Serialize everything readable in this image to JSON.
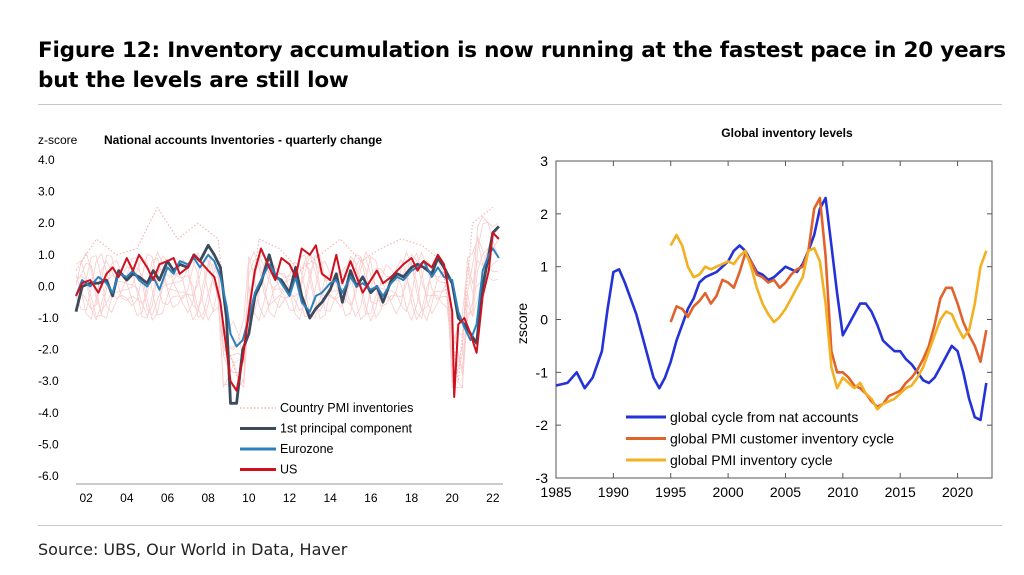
{
  "figure": {
    "title": "Figure 12: Inventory accumulation is now running at the fastest pace in 20 years but the levels are still low",
    "source": "Source: UBS, Our World in Data, Haver"
  },
  "chart_data": [
    {
      "type": "line",
      "title": "National accounts Inventories - quarterly change",
      "ylabel": "z-score",
      "xlabel": "",
      "xlim": [
        2001.5,
        2022.5
      ],
      "ylim": [
        -6,
        4
      ],
      "y_ticks": [
        "4.0",
        "3.0",
        "2.0",
        "1.0",
        "0.0",
        "-1.0",
        "-2.0",
        "-3.0",
        "-4.0",
        "-5.0",
        "-6.0"
      ],
      "x_ticks": [
        "02",
        "04",
        "06",
        "08",
        "10",
        "12",
        "14",
        "16",
        "18",
        "20",
        "22"
      ],
      "grid": false,
      "legend_position": "bottom-center",
      "series": [
        {
          "name": "Country PMI inventories",
          "color": "#f4b8b8",
          "style": "dotted",
          "x": [
            2001.5,
            2002.5,
            2003.5,
            2004.5,
            2005.5,
            2006.5,
            2007.5,
            2008.5,
            2009.0,
            2009.5,
            2010.5,
            2011.5,
            2012.5,
            2013.5,
            2014.5,
            2015.5,
            2016.5,
            2017.5,
            2018.5,
            2019.5,
            2020.3,
            2021.0,
            2022.0
          ],
          "y": [
            0.5,
            1.5,
            1.0,
            1.2,
            2.5,
            1.5,
            2.0,
            1.5,
            -2.0,
            -3.0,
            1.5,
            1.2,
            0.5,
            1.0,
            1.5,
            0.8,
            1.2,
            1.5,
            1.3,
            0.8,
            -3.0,
            2.0,
            2.5
          ]
        },
        {
          "name": "1st principal component",
          "color": "#3d4a5c",
          "x": [
            2001.5,
            2001.8,
            2002.2,
            2002.6,
            2003.0,
            2003.3,
            2003.6,
            2004.0,
            2004.3,
            2004.6,
            2005.0,
            2005.3,
            2005.6,
            2006.0,
            2006.3,
            2006.6,
            2007.0,
            2007.3,
            2007.6,
            2008.0,
            2008.3,
            2008.6,
            2008.9,
            2009.1,
            2009.4,
            2009.7,
            2010.0,
            2010.3,
            2010.6,
            2011.0,
            2011.3,
            2011.6,
            2012.0,
            2012.3,
            2012.6,
            2013.0,
            2013.3,
            2013.6,
            2014.0,
            2014.3,
            2014.6,
            2015.0,
            2015.3,
            2015.6,
            2016.0,
            2016.3,
            2016.6,
            2017.0,
            2017.3,
            2017.6,
            2018.0,
            2018.3,
            2018.6,
            2019.0,
            2019.3,
            2019.6,
            2020.0,
            2020.3,
            2020.6,
            2020.9,
            2021.2,
            2021.5,
            2021.8,
            2022.0,
            2022.3
          ],
          "y": [
            -0.8,
            0.0,
            0.1,
            0.1,
            0.2,
            -0.3,
            0.5,
            0.2,
            0.4,
            0.3,
            0.1,
            0.5,
            0.2,
            0.8,
            0.5,
            0.7,
            0.6,
            1.0,
            0.8,
            1.3,
            1.0,
            0.6,
            -1.0,
            -3.7,
            -3.7,
            -2.0,
            -1.5,
            -0.3,
            0.1,
            1.0,
            0.3,
            0.2,
            -0.2,
            0.6,
            -0.3,
            -1.0,
            -0.7,
            -0.5,
            -0.1,
            0.4,
            -0.5,
            0.5,
            0.0,
            0.3,
            -0.2,
            0.0,
            -0.5,
            0.2,
            0.4,
            0.3,
            0.6,
            0.7,
            0.6,
            0.4,
            0.9,
            0.6,
            0.1,
            -1.0,
            -1.2,
            -1.5,
            -1.8,
            0.0,
            1.0,
            1.7,
            1.9
          ]
        },
        {
          "name": "Eurozone",
          "color": "#2b80bd",
          "x": [
            2001.5,
            2001.8,
            2002.2,
            2002.6,
            2003.0,
            2003.3,
            2003.6,
            2004.0,
            2004.3,
            2004.6,
            2005.0,
            2005.3,
            2005.6,
            2006.0,
            2006.3,
            2006.6,
            2007.0,
            2007.3,
            2007.6,
            2008.0,
            2008.3,
            2008.6,
            2008.9,
            2009.1,
            2009.4,
            2009.7,
            2010.0,
            2010.3,
            2010.6,
            2011.0,
            2011.3,
            2011.6,
            2012.0,
            2012.3,
            2012.6,
            2013.0,
            2013.3,
            2013.6,
            2014.0,
            2014.3,
            2014.6,
            2015.0,
            2015.3,
            2015.6,
            2016.0,
            2016.3,
            2016.6,
            2017.0,
            2017.3,
            2017.6,
            2018.0,
            2018.3,
            2018.6,
            2019.0,
            2019.3,
            2019.6,
            2020.0,
            2020.3,
            2020.6,
            2020.9,
            2021.2,
            2021.5,
            2021.8,
            2022.0,
            2022.3
          ],
          "y": [
            -0.3,
            0.2,
            0.0,
            0.3,
            0.1,
            -0.2,
            0.4,
            0.3,
            0.5,
            0.2,
            0.0,
            0.3,
            -0.1,
            0.6,
            0.4,
            0.8,
            0.7,
            0.9,
            0.6,
            1.0,
            0.8,
            0.3,
            -0.6,
            -1.5,
            -1.9,
            -1.7,
            -1.0,
            -0.2,
            0.2,
            0.7,
            0.4,
            0.1,
            -0.3,
            0.3,
            -0.5,
            -0.8,
            -0.3,
            -0.2,
            0.1,
            0.2,
            -0.2,
            0.3,
            0.0,
            0.1,
            -0.1,
            0.0,
            -0.3,
            0.1,
            0.3,
            0.2,
            0.5,
            0.6,
            0.8,
            0.3,
            0.6,
            0.3,
            0.2,
            -0.8,
            -1.3,
            -1.7,
            -1.2,
            0.5,
            1.0,
            1.2,
            0.9
          ]
        },
        {
          "name": "US",
          "color": "#d0101e",
          "x": [
            2001.5,
            2001.8,
            2002.2,
            2002.6,
            2003.0,
            2003.3,
            2003.6,
            2004.0,
            2004.3,
            2004.6,
            2005.0,
            2005.3,
            2005.6,
            2006.0,
            2006.3,
            2006.6,
            2007.0,
            2007.3,
            2007.6,
            2008.0,
            2008.3,
            2008.6,
            2008.9,
            2009.1,
            2009.4,
            2009.7,
            2010.0,
            2010.3,
            2010.6,
            2011.0,
            2011.3,
            2011.6,
            2012.0,
            2012.3,
            2012.6,
            2013.0,
            2013.3,
            2013.6,
            2014.0,
            2014.3,
            2014.6,
            2015.0,
            2015.3,
            2015.6,
            2016.0,
            2016.3,
            2016.6,
            2017.0,
            2017.3,
            2017.6,
            2018.0,
            2018.3,
            2018.6,
            2019.0,
            2019.3,
            2019.6,
            2020.0,
            2020.1,
            2020.3,
            2020.6,
            2020.9,
            2021.2,
            2021.5,
            2021.8,
            2022.0,
            2022.3
          ],
          "y": [
            -0.3,
            0.1,
            0.2,
            -0.2,
            0.4,
            0.6,
            0.3,
            0.9,
            0.5,
            1.0,
            0.6,
            0.2,
            0.7,
            0.8,
            0.9,
            0.4,
            0.6,
            1.0,
            0.8,
            0.5,
            0.3,
            -0.5,
            -2.0,
            -3.0,
            -3.3,
            -2.3,
            -0.8,
            0.5,
            1.2,
            0.6,
            0.2,
            0.9,
            0.7,
            0.3,
            1.2,
            1.0,
            1.3,
            0.4,
            0.2,
            1.0,
            0.1,
            0.8,
            0.3,
            -0.2,
            0.2,
            0.5,
            0.1,
            0.3,
            0.5,
            0.7,
            0.9,
            0.5,
            0.8,
            0.6,
            1.0,
            0.7,
            -0.8,
            -3.5,
            -1.2,
            -1.0,
            -1.5,
            -2.1,
            -0.3,
            0.5,
            1.7,
            1.5
          ]
        }
      ]
    },
    {
      "type": "line",
      "title": "Global inventory levels",
      "ylabel": "zscore",
      "xlabel": "",
      "xlim": [
        1985,
        2023
      ],
      "ylim": [
        -3,
        3
      ],
      "y_ticks": [
        "3",
        "2",
        "1",
        "0",
        "-1",
        "-2",
        "-3"
      ],
      "x_ticks": [
        "1985",
        "1990",
        "1995",
        "2000",
        "2005",
        "2010",
        "2015",
        "2020"
      ],
      "grid": false,
      "legend_position": "bottom-center",
      "series": [
        {
          "name": "global cycle from nat accounts",
          "color": "#2432d8",
          "x": [
            1985,
            1986,
            1986.8,
            1987.5,
            1988.2,
            1989,
            1989.5,
            1990,
            1990.5,
            1991,
            1991.5,
            1992,
            1992.5,
            1993,
            1993.5,
            1994,
            1994.5,
            1995,
            1995.5,
            1996,
            1996.5,
            1997,
            1997.5,
            1998,
            1998.5,
            1999,
            1999.5,
            2000,
            2000.5,
            2001,
            2001.5,
            2002,
            2002.5,
            2003,
            2003.5,
            2004,
            2004.5,
            2005,
            2005.5,
            2006,
            2006.5,
            2007,
            2007.5,
            2008,
            2008.5,
            2009,
            2009.5,
            2010,
            2010.5,
            2011,
            2011.5,
            2012,
            2012.5,
            2013,
            2013.5,
            2014,
            2014.5,
            2015,
            2015.5,
            2016,
            2016.5,
            2017,
            2017.5,
            2018,
            2018.5,
            2019,
            2019.5,
            2020,
            2020.5,
            2021,
            2021.5,
            2022,
            2022.5
          ],
          "y": [
            -1.25,
            -1.2,
            -1.0,
            -1.3,
            -1.1,
            -0.6,
            0.2,
            0.9,
            0.95,
            0.7,
            0.4,
            0.1,
            -0.3,
            -0.7,
            -1.1,
            -1.3,
            -1.1,
            -0.8,
            -0.4,
            -0.1,
            0.2,
            0.4,
            0.7,
            0.8,
            0.85,
            0.9,
            1.0,
            1.1,
            1.3,
            1.4,
            1.3,
            1.1,
            0.9,
            0.85,
            0.75,
            0.8,
            0.9,
            1.0,
            0.95,
            0.9,
            1.05,
            1.3,
            1.6,
            2.1,
            2.3,
            1.4,
            0.5,
            -0.3,
            -0.1,
            0.1,
            0.3,
            0.3,
            0.15,
            -0.1,
            -0.4,
            -0.5,
            -0.6,
            -0.6,
            -0.75,
            -0.85,
            -1.0,
            -1.15,
            -1.2,
            -1.1,
            -0.9,
            -0.7,
            -0.5,
            -0.6,
            -1.0,
            -1.5,
            -1.85,
            -1.9,
            -1.2
          ]
        },
        {
          "name": "global PMI customer inventory cycle",
          "color": "#e2622c",
          "x": [
            1995,
            1995.5,
            1996,
            1996.5,
            1997,
            1997.5,
            1998,
            1998.5,
            1999,
            1999.5,
            2000,
            2000.5,
            2001,
            2001.5,
            2002,
            2002.5,
            2003,
            2003.5,
            2004,
            2004.5,
            2005,
            2005.5,
            2006,
            2006.5,
            2007,
            2007.5,
            2008,
            2008.5,
            2009,
            2009.5,
            2010,
            2010.5,
            2011,
            2011.5,
            2012,
            2012.5,
            2013,
            2013.5,
            2014,
            2014.5,
            2015,
            2015.5,
            2016,
            2016.5,
            2017,
            2017.5,
            2018,
            2018.5,
            2019,
            2019.5,
            2020,
            2020.5,
            2021,
            2021.5,
            2022,
            2022.5
          ],
          "y": [
            -0.05,
            0.25,
            0.2,
            0.05,
            0.25,
            0.35,
            0.5,
            0.3,
            0.45,
            0.75,
            0.7,
            0.6,
            0.9,
            1.25,
            1.1,
            0.85,
            0.8,
            0.7,
            0.75,
            0.6,
            0.7,
            0.85,
            0.95,
            1.0,
            1.3,
            2.1,
            2.3,
            1.2,
            -0.6,
            -1.0,
            -1.0,
            -1.1,
            -1.25,
            -1.3,
            -1.4,
            -1.55,
            -1.65,
            -1.6,
            -1.45,
            -1.4,
            -1.35,
            -1.2,
            -1.1,
            -0.95,
            -0.75,
            -0.5,
            -0.1,
            0.4,
            0.6,
            0.6,
            0.3,
            -0.05,
            -0.3,
            -0.5,
            -0.8,
            -0.2
          ]
        },
        {
          "name": "global PMI inventory cycle",
          "color": "#f2b022",
          "x": [
            1995,
            1995.5,
            1996,
            1996.5,
            1997,
            1997.5,
            1998,
            1998.5,
            1999,
            1999.5,
            2000,
            2000.5,
            2001,
            2001.5,
            2002,
            2002.5,
            2003,
            2003.5,
            2004,
            2004.5,
            2005,
            2005.5,
            2006,
            2006.5,
            2007,
            2007.5,
            2008,
            2008.5,
            2009,
            2009.5,
            2010,
            2010.5,
            2011,
            2011.5,
            2012,
            2012.5,
            2013,
            2013.5,
            2014,
            2014.5,
            2015,
            2015.5,
            2016,
            2016.5,
            2017,
            2017.5,
            2018,
            2018.5,
            2019,
            2019.5,
            2020,
            2020.5,
            2021,
            2021.5,
            2022,
            2022.5
          ],
          "y": [
            1.4,
            1.6,
            1.4,
            1.0,
            0.8,
            0.85,
            1.0,
            0.95,
            1.0,
            1.05,
            1.1,
            1.05,
            1.2,
            1.3,
            1.0,
            0.6,
            0.3,
            0.1,
            -0.05,
            0.05,
            0.2,
            0.4,
            0.6,
            0.8,
            1.3,
            1.35,
            1.1,
            0.3,
            -0.9,
            -1.3,
            -1.1,
            -1.2,
            -1.3,
            -1.2,
            -1.4,
            -1.5,
            -1.7,
            -1.6,
            -1.55,
            -1.5,
            -1.4,
            -1.3,
            -1.25,
            -1.1,
            -0.9,
            -0.6,
            -0.3,
            0.0,
            0.15,
            0.1,
            -0.15,
            -0.35,
            -0.2,
            0.3,
            1.0,
            1.3
          ]
        }
      ]
    }
  ]
}
